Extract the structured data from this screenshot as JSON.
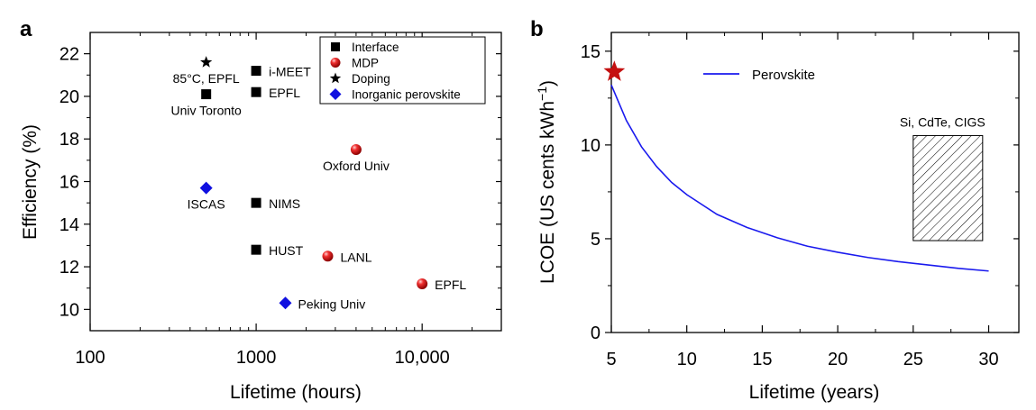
{
  "chart_data": [
    {
      "type": "scatter",
      "panel": "a",
      "xlabel": "Lifetime (hours)",
      "ylabel": "Efficiency (%)",
      "xscale": "log",
      "xlim": [
        100,
        30000
      ],
      "ylim": [
        9,
        23
      ],
      "xticks": [
        100,
        1000,
        10000
      ],
      "xtick_labels": [
        "100",
        "1000",
        "10,000"
      ],
      "yticks": [
        10,
        12,
        14,
        16,
        18,
        20,
        22
      ],
      "ytick_labels": [
        "10",
        "12",
        "14",
        "16",
        "18",
        "20",
        "22"
      ],
      "legend": {
        "location": "top-right",
        "entries": [
          {
            "label": "Interface",
            "marker": "square",
            "color": "#000000"
          },
          {
            "label": "MDP",
            "marker": "sphere",
            "color": "#e01010"
          },
          {
            "label": "Doping",
            "marker": "star",
            "color": "#000000"
          },
          {
            "label": "Inorganic perovskite",
            "marker": "diamond",
            "color": "#1010e0"
          }
        ]
      },
      "points": [
        {
          "x": 500,
          "y": 21.6,
          "label": "85°C, EPFL",
          "category": "Doping",
          "label_pos": "below"
        },
        {
          "x": 1000,
          "y": 21.2,
          "label": "i-MEET",
          "category": "Interface",
          "label_pos": "right"
        },
        {
          "x": 500,
          "y": 20.1,
          "label": "Univ Toronto",
          "category": "Interface",
          "label_pos": "below"
        },
        {
          "x": 1000,
          "y": 20.2,
          "label": "EPFL",
          "category": "Interface",
          "label_pos": "right"
        },
        {
          "x": 4000,
          "y": 17.5,
          "label": "Oxford Univ",
          "category": "MDP",
          "label_pos": "below"
        },
        {
          "x": 500,
          "y": 15.7,
          "label": "ISCAS",
          "category": "Inorganic perovskite",
          "label_pos": "below"
        },
        {
          "x": 1000,
          "y": 15.0,
          "label": "NIMS",
          "category": "Interface",
          "label_pos": "right"
        },
        {
          "x": 1000,
          "y": 12.8,
          "label": "HUST",
          "category": "Interface",
          "label_pos": "right"
        },
        {
          "x": 2700,
          "y": 12.5,
          "label": "LANL",
          "category": "MDP",
          "label_pos": "right"
        },
        {
          "x": 10000,
          "y": 11.2,
          "label": "EPFL",
          "category": "MDP",
          "label_pos": "right"
        },
        {
          "x": 1500,
          "y": 10.3,
          "label": "Peking Univ",
          "category": "Inorganic perovskite",
          "label_pos": "right"
        }
      ]
    },
    {
      "type": "line",
      "panel": "b",
      "xlabel": "Lifetime (years)",
      "ylabel_main": "LCOE (US cents kWh",
      "ylabel_sup": "−1",
      "ylabel_tail": ")",
      "xlim": [
        5,
        32
      ],
      "ylim": [
        0,
        16
      ],
      "xticks": [
        5,
        10,
        15,
        20,
        25,
        30
      ],
      "xtick_labels": [
        "5",
        "10",
        "15",
        "20",
        "25",
        "30"
      ],
      "yticks": [
        0,
        5,
        10,
        15
      ],
      "ytick_labels": [
        "0",
        "5",
        "10",
        "15"
      ],
      "series": [
        {
          "name": "Perovskite",
          "color": "#1a1aee",
          "x": [
            5,
            6,
            7,
            8,
            9,
            10,
            12,
            14,
            16,
            18,
            20,
            22,
            24,
            26,
            28,
            30
          ],
          "y": [
            13.2,
            11.3,
            9.9,
            8.85,
            8.0,
            7.35,
            6.3,
            5.6,
            5.05,
            4.6,
            4.28,
            4.0,
            3.78,
            3.6,
            3.42,
            3.28
          ]
        }
      ],
      "marker_star": {
        "x": 5.2,
        "y": 13.9,
        "color": "#c41010"
      },
      "hatched_region": {
        "label": "Si, CdTe, CIGS",
        "x": [
          25,
          29.6
        ],
        "y": [
          4.9,
          10.5
        ]
      }
    }
  ],
  "panel_labels": [
    "a",
    "b"
  ]
}
